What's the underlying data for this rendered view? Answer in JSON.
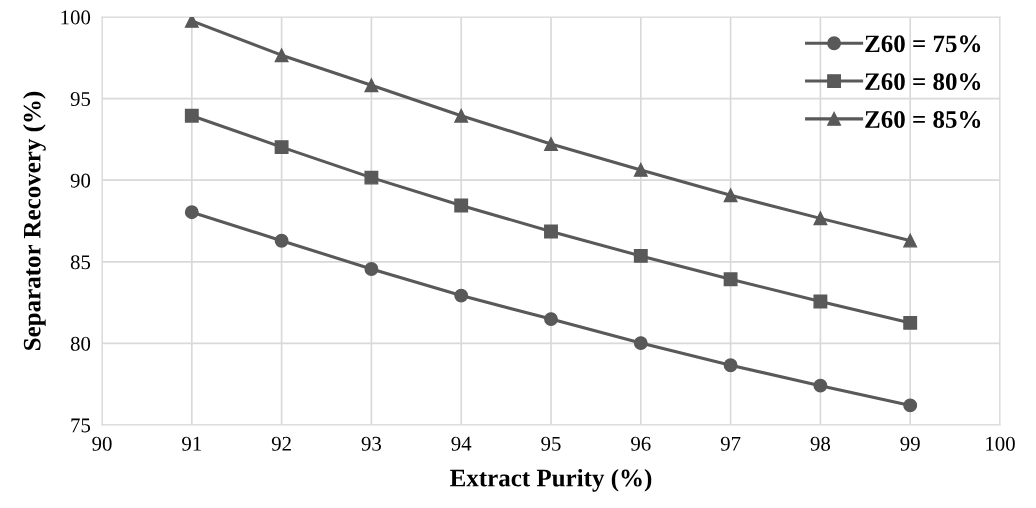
{
  "chart_data": {
    "type": "line",
    "xlabel": "Extract Purity (%)",
    "ylabel": "Separator Recovery (%)",
    "x": [
      91,
      92,
      93,
      94,
      95,
      96,
      97,
      98,
      99
    ],
    "series": [
      {
        "name": "Z60 = 75%",
        "color": "#595959",
        "marker": "circle",
        "values": [
          88.04,
          86.29,
          84.56,
          82.93,
          81.49,
          80.02,
          78.66,
          77.41,
          76.2
        ]
      },
      {
        "name": "Z60 = 80%",
        "color": "#595959",
        "marker": "square",
        "values": [
          93.95,
          92.03,
          90.16,
          88.45,
          86.86,
          85.36,
          83.93,
          82.57,
          81.26
        ]
      },
      {
        "name": "Z60 = 85%",
        "color": "#595959",
        "marker": "triangle",
        "values": [
          99.76,
          97.66,
          95.82,
          93.95,
          92.22,
          90.63,
          89.08,
          87.66,
          86.3
        ]
      }
    ],
    "xlim": [
      90,
      100
    ],
    "xticks": [
      90,
      91,
      92,
      93,
      94,
      95,
      96,
      97,
      98,
      99,
      100
    ],
    "ylim": [
      75,
      100
    ],
    "yticks": [
      75,
      80,
      85,
      90,
      95,
      100
    ],
    "grid": true,
    "legend": "top right",
    "line_style": "solid"
  }
}
